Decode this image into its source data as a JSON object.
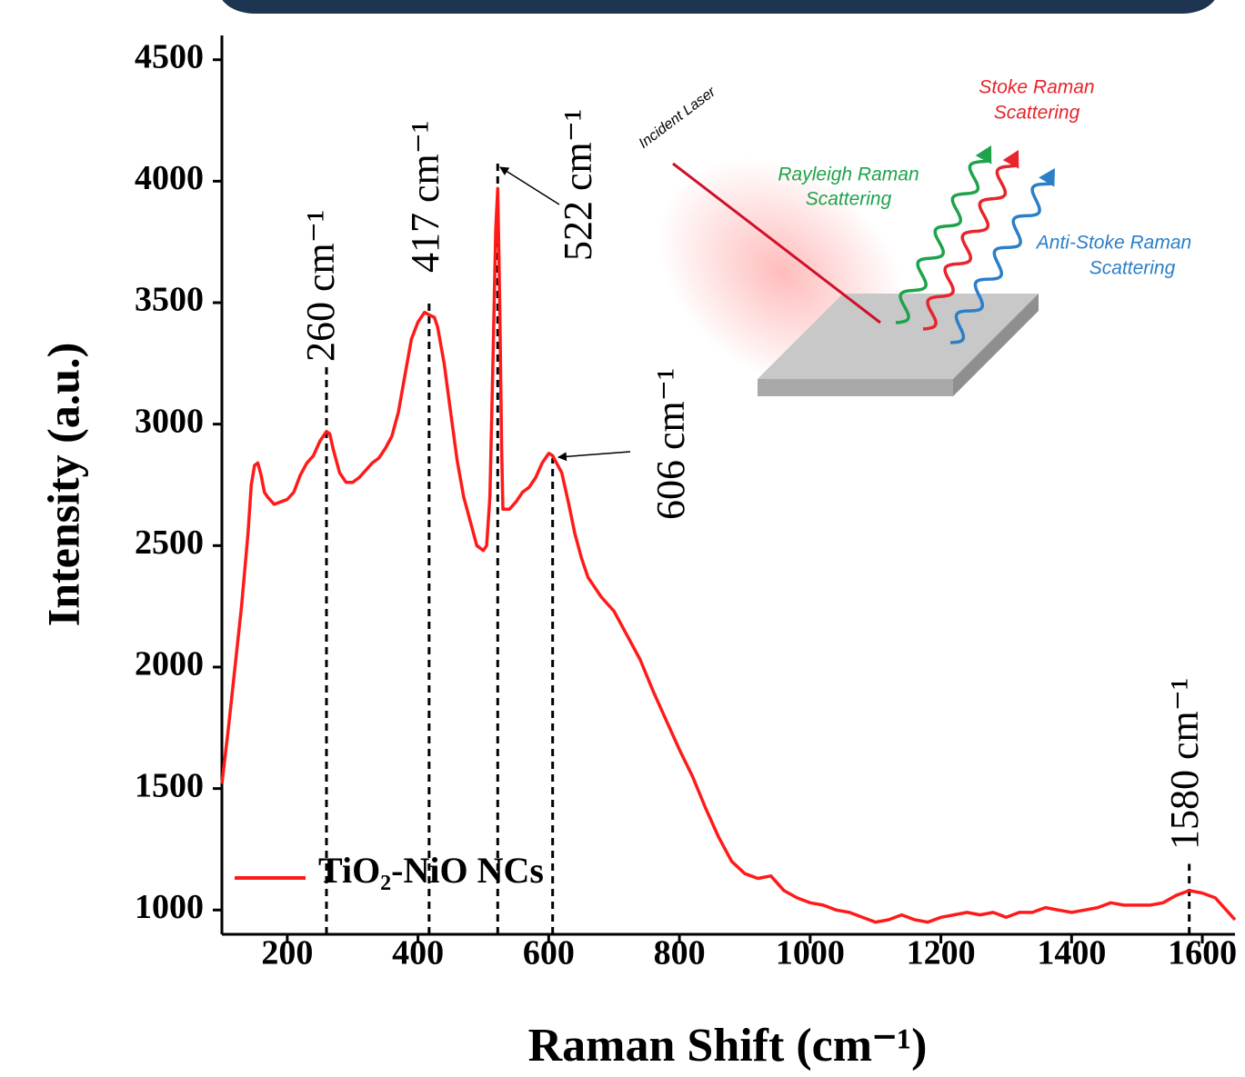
{
  "chart_data": {
    "type": "line",
    "xlabel": "Raman Shift (cm⁻¹)",
    "ylabel": "Intensity (a.u.)",
    "xlim": [
      100,
      1650
    ],
    "ylim": [
      900,
      4600
    ],
    "xticks": [
      200,
      400,
      600,
      800,
      1000,
      1200,
      1400,
      1600
    ],
    "yticks": [
      1000,
      1500,
      2000,
      2500,
      3000,
      3500,
      4000,
      4500
    ],
    "x": [
      100,
      110,
      120,
      130,
      140,
      145,
      150,
      155,
      160,
      165,
      170,
      180,
      190,
      200,
      210,
      220,
      230,
      240,
      250,
      260,
      265,
      270,
      280,
      290,
      300,
      310,
      320,
      330,
      340,
      350,
      360,
      370,
      380,
      390,
      400,
      410,
      417,
      425,
      430,
      440,
      450,
      460,
      470,
      480,
      490,
      500,
      505,
      510,
      515,
      519,
      522,
      525,
      528,
      530,
      540,
      550,
      560,
      570,
      580,
      590,
      600,
      606,
      610,
      620,
      630,
      640,
      650,
      660,
      670,
      680,
      690,
      700,
      710,
      720,
      740,
      760,
      780,
      800,
      820,
      840,
      860,
      880,
      900,
      920,
      940,
      960,
      980,
      1000,
      1020,
      1040,
      1060,
      1080,
      1100,
      1120,
      1140,
      1160,
      1180,
      1200,
      1220,
      1240,
      1260,
      1280,
      1300,
      1320,
      1340,
      1360,
      1380,
      1400,
      1420,
      1440,
      1460,
      1480,
      1500,
      1520,
      1540,
      1560,
      1580,
      1600,
      1620,
      1640,
      1650
    ],
    "series": [
      {
        "name": "TiO₂-NiO NCs",
        "color": "#ff1a1a",
        "values": [
          1520,
          1750,
          2000,
          2250,
          2550,
          2750,
          2830,
          2840,
          2790,
          2720,
          2700,
          2670,
          2680,
          2690,
          2720,
          2790,
          2840,
          2870,
          2930,
          2970,
          2960,
          2900,
          2800,
          2760,
          2760,
          2780,
          2810,
          2840,
          2860,
          2900,
          2950,
          3050,
          3200,
          3350,
          3420,
          3460,
          3450,
          3440,
          3400,
          3250,
          3050,
          2850,
          2700,
          2600,
          2500,
          2480,
          2500,
          2700,
          3300,
          3800,
          3970,
          3500,
          2900,
          2650,
          2650,
          2680,
          2720,
          2740,
          2780,
          2840,
          2880,
          2870,
          2850,
          2800,
          2680,
          2550,
          2450,
          2370,
          2330,
          2290,
          2260,
          2230,
          2180,
          2130,
          2030,
          1900,
          1780,
          1660,
          1550,
          1420,
          1300,
          1200,
          1150,
          1130,
          1140,
          1080,
          1050,
          1030,
          1020,
          1000,
          990,
          970,
          950,
          960,
          980,
          960,
          950,
          970,
          980,
          990,
          980,
          990,
          970,
          990,
          990,
          1010,
          1000,
          990,
          1000,
          1010,
          1030,
          1020,
          1020,
          1020,
          1030,
          1060,
          1080,
          1070,
          1050,
          990,
          960
        ]
      }
    ],
    "annotations": [
      {
        "x": 260,
        "y": 3250,
        "label": "260 cm⁻¹"
      },
      {
        "x": 417,
        "y": 3510,
        "label": "417 cm⁻¹"
      },
      {
        "x": 522,
        "y": 4075,
        "label": "522 cm⁻¹"
      },
      {
        "x": 606,
        "y": 2860,
        "label": "606 cm⁻¹"
      },
      {
        "x": 1580,
        "y": 1190,
        "label": "1580 cm⁻¹"
      }
    ]
  },
  "inset": {
    "laser": "Incident Laser",
    "stoke": [
      "Stoke Raman",
      "Scattering"
    ],
    "rayleigh": [
      "Rayleigh Raman",
      "Scattering"
    ],
    "anti_stoke": [
      "Anti-Stoke Raman",
      "Scattering"
    ]
  }
}
